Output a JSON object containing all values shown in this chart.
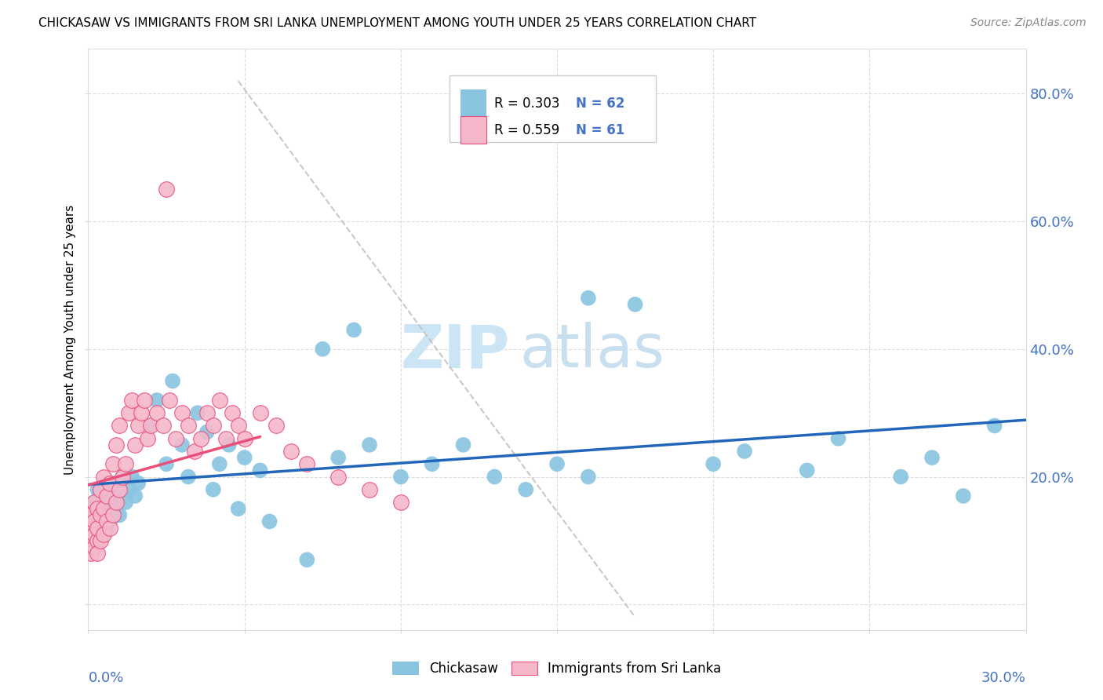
{
  "title": "CHICKASAW VS IMMIGRANTS FROM SRI LANKA UNEMPLOYMENT AMONG YOUTH UNDER 25 YEARS CORRELATION CHART",
  "source": "Source: ZipAtlas.com",
  "ylabel": "Unemployment Among Youth under 25 years",
  "xlim": [
    0.0,
    0.3
  ],
  "ylim": [
    -0.04,
    0.87
  ],
  "legend_r1": "R = 0.303",
  "legend_n1": "N = 62",
  "legend_r2": "R = 0.559",
  "legend_n2": "N = 61",
  "chickasaw_color": "#89c4e1",
  "srilanka_color": "#f5b8cb",
  "chickasaw_line_color": "#2266bb",
  "srilanka_line_color": "#e8507a",
  "watermark_zip": "ZIP",
  "watermark_atlas": "atlas",
  "watermark_color_zip": "#cce5f5",
  "watermark_color_atlas": "#c8dff0",
  "background_color": "#ffffff",
  "grid_color": "#dddddd",
  "right_tick_color": "#4472c4",
  "xlabel_color": "#4472c4",
  "legend_r_color": "#000000",
  "legend_n_color": "#4472c4"
}
